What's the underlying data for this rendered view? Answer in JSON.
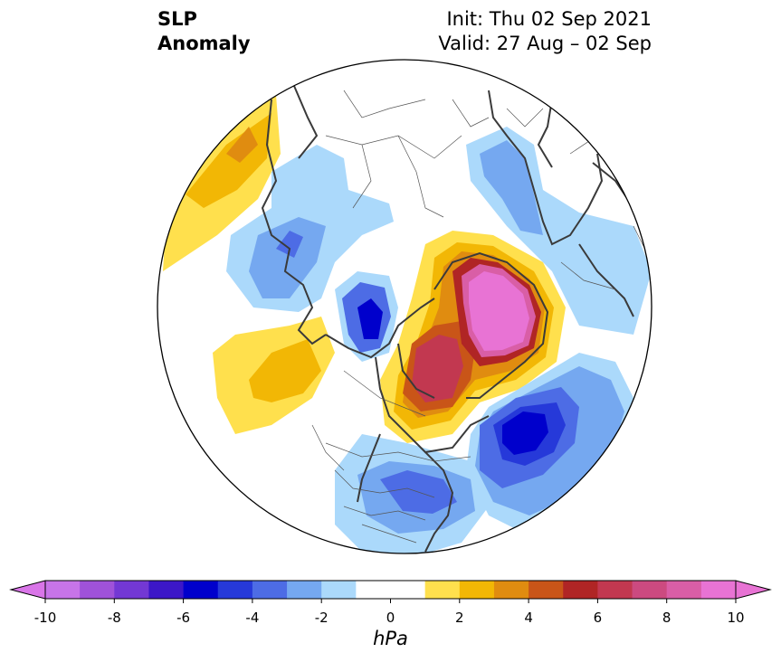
{
  "title": {
    "left_line1": "SLP",
    "left_line2": "Anomaly",
    "right_line1": "Init: Thu 02 Sep 2021",
    "right_line2": "Valid: 27 Aug – 02 Sep"
  },
  "colorbar": {
    "unit": "hPa",
    "ticks": [
      "-10",
      "-8",
      "-6",
      "-4",
      "-2",
      "0",
      "2",
      "4",
      "6",
      "8",
      "10"
    ],
    "levels": [
      -10,
      -9,
      -8,
      -7,
      -6,
      -5,
      -4,
      -3,
      -2,
      -1,
      1,
      2,
      3,
      4,
      5,
      6,
      7,
      8,
      9,
      10
    ],
    "colors": [
      "#c774e8",
      "#9f52d9",
      "#7338d4",
      "#3c17c8",
      "#0000cc",
      "#2639d9",
      "#4d6ce5",
      "#75a8f0",
      "#abd9fb",
      "#ffffff",
      "#ffe04d",
      "#f2b705",
      "#e08c10",
      "#c95518",
      "#b02525",
      "#c23850",
      "#cc4a80",
      "#d95ea6",
      "#e873d4"
    ],
    "under_color": "#d975e8",
    "over_color": "#e873d4"
  }
}
